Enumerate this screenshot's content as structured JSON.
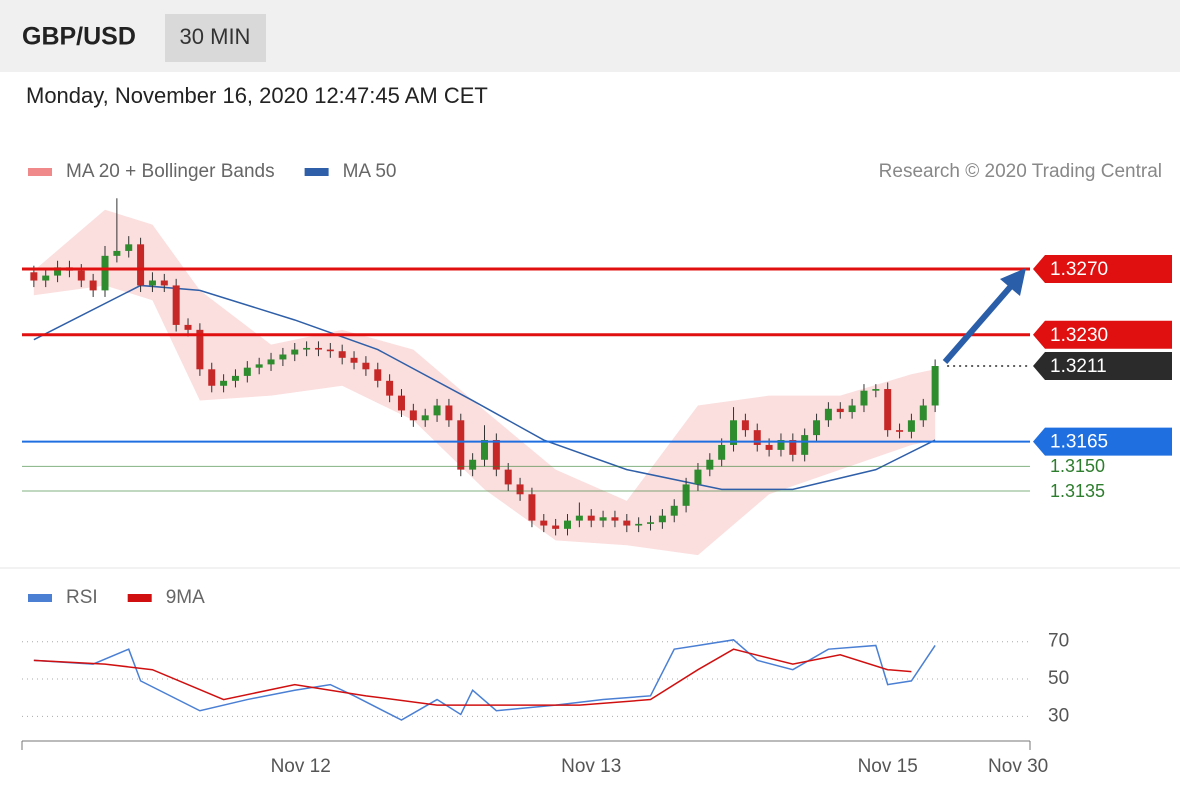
{
  "header": {
    "symbol": "GBP/USD",
    "timeframe": "30 MIN"
  },
  "timestamp": "Monday, November 16, 2020 12:47:45 AM CET",
  "credit": "Research © 2020 Trading Central",
  "chart_data": [
    {
      "type": "candlestick",
      "xlim": [
        -1,
        84
      ],
      "ylim": [
        1.309,
        1.3315
      ],
      "up_color": "#2e8b2e",
      "down_color": "#c62828",
      "candles": [
        [
          1.3268,
          1.3272,
          1.3259,
          1.3263
        ],
        [
          1.3263,
          1.327,
          1.3259,
          1.3266
        ],
        [
          1.3266,
          1.3275,
          1.3262,
          1.3271
        ],
        [
          1.3271,
          1.3275,
          1.3265,
          1.3269
        ],
        [
          1.3269,
          1.3273,
          1.3259,
          1.3263
        ],
        [
          1.3263,
          1.3267,
          1.3253,
          1.3257
        ],
        [
          1.3257,
          1.3284,
          1.3253,
          1.3278
        ],
        [
          1.3278,
          1.3313,
          1.3274,
          1.3281
        ],
        [
          1.3281,
          1.329,
          1.3277,
          1.3285
        ],
        [
          1.3285,
          1.3289,
          1.3256,
          1.326
        ],
        [
          1.326,
          1.3268,
          1.3256,
          1.3263
        ],
        [
          1.3263,
          1.3267,
          1.3256,
          1.326
        ],
        [
          1.326,
          1.3264,
          1.3232,
          1.3236
        ],
        [
          1.3236,
          1.324,
          1.3229,
          1.3233
        ],
        [
          1.3233,
          1.3237,
          1.3205,
          1.3209
        ],
        [
          1.3209,
          1.3213,
          1.3195,
          1.3199
        ],
        [
          1.3199,
          1.3206,
          1.3195,
          1.3202
        ],
        [
          1.3202,
          1.3209,
          1.3198,
          1.3205
        ],
        [
          1.3205,
          1.3214,
          1.3201,
          1.321
        ],
        [
          1.321,
          1.3216,
          1.3206,
          1.3212
        ],
        [
          1.3212,
          1.3219,
          1.3208,
          1.3215
        ],
        [
          1.3215,
          1.3222,
          1.3211,
          1.3218
        ],
        [
          1.3218,
          1.3225,
          1.3214,
          1.3221
        ],
        [
          1.3221,
          1.3226,
          1.3217,
          1.3222
        ],
        [
          1.3222,
          1.3226,
          1.3217,
          1.3221
        ],
        [
          1.3221,
          1.3225,
          1.3216,
          1.322
        ],
        [
          1.322,
          1.3224,
          1.3212,
          1.3216
        ],
        [
          1.3216,
          1.322,
          1.3209,
          1.3213
        ],
        [
          1.3213,
          1.3217,
          1.3205,
          1.3209
        ],
        [
          1.3209,
          1.3213,
          1.3198,
          1.3202
        ],
        [
          1.3202,
          1.3206,
          1.3189,
          1.3193
        ],
        [
          1.3193,
          1.3197,
          1.318,
          1.3184
        ],
        [
          1.3184,
          1.3188,
          1.3174,
          1.3178
        ],
        [
          1.3178,
          1.3185,
          1.3174,
          1.3181
        ],
        [
          1.3181,
          1.3191,
          1.3177,
          1.3187
        ],
        [
          1.3187,
          1.3191,
          1.3174,
          1.3178
        ],
        [
          1.3178,
          1.3182,
          1.3144,
          1.3148
        ],
        [
          1.3148,
          1.3158,
          1.3144,
          1.3154
        ],
        [
          1.3154,
          1.3175,
          1.315,
          1.3166
        ],
        [
          1.3166,
          1.317,
          1.3144,
          1.3148
        ],
        [
          1.3148,
          1.3152,
          1.3135,
          1.3139
        ],
        [
          1.3139,
          1.3143,
          1.3129,
          1.3133
        ],
        [
          1.3133,
          1.3137,
          1.3113,
          1.3117
        ],
        [
          1.3117,
          1.3121,
          1.311,
          1.3114
        ],
        [
          1.3114,
          1.3118,
          1.3108,
          1.3112
        ],
        [
          1.3112,
          1.3121,
          1.3108,
          1.3117
        ],
        [
          1.3117,
          1.3128,
          1.3113,
          1.312
        ],
        [
          1.312,
          1.3124,
          1.3113,
          1.3117
        ],
        [
          1.3117,
          1.3123,
          1.3113,
          1.3119
        ],
        [
          1.3119,
          1.3123,
          1.3113,
          1.3117
        ],
        [
          1.3117,
          1.3121,
          1.311,
          1.3114
        ],
        [
          1.3114,
          1.3119,
          1.311,
          1.3115
        ],
        [
          1.3115,
          1.312,
          1.3111,
          1.3116
        ],
        [
          1.3116,
          1.3124,
          1.3112,
          1.312
        ],
        [
          1.312,
          1.313,
          1.3116,
          1.3126
        ],
        [
          1.3126,
          1.3143,
          1.3122,
          1.3139
        ],
        [
          1.3139,
          1.3152,
          1.3135,
          1.3148
        ],
        [
          1.3148,
          1.3158,
          1.3144,
          1.3154
        ],
        [
          1.3154,
          1.3167,
          1.315,
          1.3163
        ],
        [
          1.3163,
          1.3186,
          1.3159,
          1.3178
        ],
        [
          1.3178,
          1.3182,
          1.3168,
          1.3172
        ],
        [
          1.3172,
          1.3176,
          1.3159,
          1.3163
        ],
        [
          1.3163,
          1.3167,
          1.3156,
          1.316
        ],
        [
          1.316,
          1.317,
          1.3156,
          1.3166
        ],
        [
          1.3166,
          1.317,
          1.3153,
          1.3157
        ],
        [
          1.3157,
          1.3173,
          1.3153,
          1.3169
        ],
        [
          1.3169,
          1.3182,
          1.3165,
          1.3178
        ],
        [
          1.3178,
          1.3189,
          1.3174,
          1.3185
        ],
        [
          1.3185,
          1.3189,
          1.3179,
          1.3183
        ],
        [
          1.3183,
          1.3191,
          1.3179,
          1.3187
        ],
        [
          1.3187,
          1.32,
          1.3183,
          1.3196
        ],
        [
          1.3196,
          1.32,
          1.3192,
          1.3197
        ],
        [
          1.3197,
          1.3201,
          1.3168,
          1.3172
        ],
        [
          1.3172,
          1.3176,
          1.3167,
          1.3171
        ],
        [
          1.3171,
          1.3182,
          1.3167,
          1.3178
        ],
        [
          1.3178,
          1.3191,
          1.3174,
          1.3187
        ],
        [
          1.3187,
          1.3215,
          1.3183,
          1.3211
        ]
      ],
      "series": [
        {
          "name": "MA 20 + Bollinger Bands",
          "color": "#f08a8a",
          "x": [
            0,
            6,
            10,
            14,
            20,
            26,
            32,
            38,
            44,
            50,
            56,
            62,
            68,
            74,
            76
          ],
          "upper": [
            1.3269,
            1.3306,
            1.3297,
            1.3257,
            1.3224,
            1.3233,
            1.3221,
            1.3184,
            1.3148,
            1.3129,
            1.3187,
            1.3193,
            1.3193,
            1.3206,
            1.3209
          ],
          "lower": [
            1.3254,
            1.326,
            1.3251,
            1.319,
            1.3193,
            1.3199,
            1.3178,
            1.3136,
            1.3105,
            1.3102,
            1.3096,
            1.3133,
            1.3148,
            1.3163,
            1.3166
          ]
        },
        {
          "name": "MA 50",
          "color": "#2f5fa8",
          "x": [
            0,
            9,
            14,
            22,
            29,
            37,
            43,
            50,
            58,
            64,
            71,
            76
          ],
          "values": [
            1.3227,
            1.326,
            1.3257,
            1.3239,
            1.3221,
            1.319,
            1.3166,
            1.3148,
            1.3136,
            1.3136,
            1.3148,
            1.3166
          ]
        }
      ],
      "levels": [
        {
          "value": 1.327,
          "label": "1.3270",
          "color": "#e01010",
          "style": "box",
          "line": "solid",
          "line_width": 3
        },
        {
          "value": 1.323,
          "label": "1.3230",
          "color": "#e01010",
          "style": "box",
          "line": "solid",
          "line_width": 3
        },
        {
          "value": 1.3211,
          "label": "1.3211",
          "color": "#2b2b2b",
          "style": "box",
          "line": "dotted",
          "line_width": 1.5
        },
        {
          "value": 1.3165,
          "label": "1.3165",
          "color": "#1f6fe0",
          "style": "box",
          "line": "solid",
          "line_width": 2
        },
        {
          "value": 1.315,
          "label": "1.3150",
          "color": "#2e7d2e",
          "style": "text",
          "line": "solid",
          "line_width": 1
        },
        {
          "value": 1.3135,
          "label": "1.3135",
          "color": "#2e7d2e",
          "style": "text",
          "line": "solid",
          "line_width": 1
        }
      ]
    },
    {
      "type": "line",
      "xlim": [
        -1,
        84
      ],
      "ylim": [
        20,
        87
      ],
      "yticks": [
        30,
        50,
        70
      ],
      "xticks": [
        {
          "value": 22.5,
          "label": "Nov 12"
        },
        {
          "value": 47,
          "label": "Nov 13"
        },
        {
          "value": 72,
          "label": "Nov 15"
        },
        {
          "value": 83,
          "label": "Nov 30"
        }
      ],
      "series": [
        {
          "name": "RSI",
          "color": "#4a7fd4",
          "x": [
            0,
            5,
            8,
            9,
            14,
            18,
            22,
            25,
            27,
            31,
            34,
            36,
            37,
            39,
            44,
            48,
            52,
            54,
            56,
            59,
            61,
            64,
            67,
            71,
            72,
            74,
            76
          ],
          "values": [
            60,
            58,
            66,
            49,
            33,
            39,
            44,
            47,
            41,
            28,
            39,
            31,
            44,
            33,
            36,
            39,
            41,
            66,
            68,
            71,
            60,
            55,
            66,
            68,
            47,
            49,
            68
          ]
        },
        {
          "name": "9MA",
          "color": "#d01010",
          "x": [
            0,
            6,
            10,
            16,
            22,
            28,
            34,
            40,
            46,
            52,
            56,
            59,
            64,
            68,
            72,
            74
          ],
          "values": [
            60,
            58,
            55,
            39,
            47,
            41,
            36,
            36,
            36,
            39,
            55,
            66,
            58,
            63,
            55,
            54
          ]
        }
      ]
    }
  ]
}
